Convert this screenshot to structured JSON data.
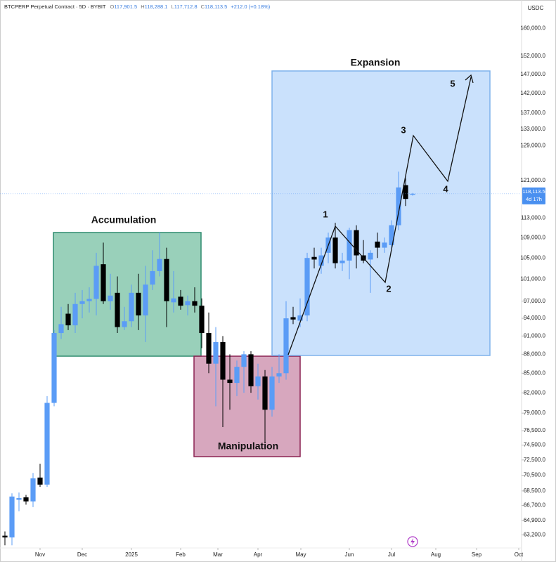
{
  "chart_data": {
    "type": "candlestick",
    "header": {
      "symbol": "BTCPERP Perpetual Contract · 5D · BYBIT",
      "ohlc": [
        {
          "key": "O",
          "value": "117,901.5"
        },
        {
          "key": "H",
          "value": "118,288.1"
        },
        {
          "key": "L",
          "value": "117,712.8"
        },
        {
          "key": "C",
          "value": "118,113.5"
        }
      ],
      "change": "+212.0 (+0.18%)"
    },
    "currency": "USDC",
    "last_price": {
      "value": 118113.5,
      "label": "118,113.5"
    },
    "countdown": "4d 17h",
    "up_color": "#5b9cf6",
    "down_color": "#000000",
    "log_scale": true,
    "grid": false,
    "open": [
      63100,
      62900,
      67400,
      67700,
      67200,
      70200,
      69300,
      80500,
      91500,
      94800,
      92800,
      96500,
      97000,
      97400,
      103800,
      97000,
      98500,
      92500,
      93500,
      98500,
      94500,
      100000,
      102500,
      104800,
      96800,
      97800,
      96300,
      97000,
      96200,
      91500,
      86500,
      90000,
      84000,
      83500,
      86000,
      88000,
      83000,
      84500,
      79500,
      84500,
      85000,
      94200,
      93600,
      94500,
      105200,
      103500,
      106000,
      109000,
      104000,
      104500,
      110500,
      105500,
      104700,
      108200,
      107000,
      107500,
      111500,
      120000,
      117901.5
    ],
    "high": [
      63600,
      68200,
      68300,
      68000,
      70800,
      72000,
      81500,
      92000,
      96000,
      96500,
      98500,
      99000,
      99500,
      106000,
      108000,
      102000,
      101500,
      96000,
      100000,
      102000,
      103500,
      106500,
      110000,
      107000,
      102500,
      99000,
      98000,
      99500,
      97500,
      95000,
      92500,
      91000,
      88000,
      87000,
      88500,
      88500,
      86500,
      85500,
      86000,
      88000,
      97000,
      96000,
      97500,
      106000,
      107000,
      107000,
      110000,
      112000,
      106000,
      111000,
      111500,
      108500,
      106500,
      110000,
      109000,
      112500,
      123000,
      121500,
      118288.1
    ],
    "low": [
      62000,
      62000,
      66000,
      66800,
      66500,
      69000,
      69000,
      80000,
      90500,
      92000,
      91500,
      94000,
      95000,
      94500,
      96500,
      95500,
      91500,
      92000,
      92500,
      92000,
      90000,
      99000,
      101500,
      92500,
      95000,
      95500,
      94500,
      95000,
      89000,
      85000,
      80000,
      77000,
      79500,
      81500,
      82000,
      82000,
      81000,
      74800,
      78500,
      83500,
      84000,
      93000,
      92500,
      93500,
      103000,
      102000,
      104000,
      103000,
      102500,
      101000,
      103000,
      104000,
      98500,
      105000,
      106000,
      106500,
      110500,
      115500,
      117712.8
    ],
    "close": [
      62900,
      67800,
      67600,
      67200,
      70100,
      69300,
      80500,
      91500,
      93000,
      92800,
      96500,
      97000,
      97400,
      103500,
      97000,
      98000,
      92500,
      93500,
      98500,
      94500,
      100000,
      102500,
      104800,
      97000,
      97500,
      96200,
      97000,
      96200,
      91500,
      86500,
      90000,
      84000,
      83500,
      86000,
      88000,
      83000,
      84500,
      79500,
      84500,
      85000,
      94000,
      93800,
      94500,
      105000,
      104700,
      105500,
      109000,
      104000,
      104500,
      110500,
      105500,
      104500,
      106000,
      107000,
      108000,
      111500,
      119500,
      117000,
      118113.5
    ],
    "xlim": [
      -0.7,
      73.4
    ],
    "xticks": [
      {
        "value": 5,
        "label": "Nov"
      },
      {
        "value": 11,
        "label": "Dec"
      },
      {
        "value": 18,
        "label": "2025"
      },
      {
        "value": 25,
        "label": "Feb"
      },
      {
        "value": 30.3,
        "label": "Mar"
      },
      {
        "value": 36,
        "label": "Apr"
      },
      {
        "value": 42.1,
        "label": "May"
      },
      {
        "value": 49,
        "label": "Jun"
      },
      {
        "value": 55,
        "label": "Jul"
      },
      {
        "value": 61.3,
        "label": "Aug"
      },
      {
        "value": 67.1,
        "label": "Sep"
      },
      {
        "value": 73.1,
        "label": "Oct"
      }
    ],
    "ylim": [
      61700,
      168500
    ],
    "yticks": [
      {
        "value": 160000,
        "label": "160,000.0"
      },
      {
        "value": 152000,
        "label": "152,000.0"
      },
      {
        "value": 147000,
        "label": "147,000.0"
      },
      {
        "value": 142000,
        "label": "142,000.0"
      },
      {
        "value": 137000,
        "label": "137,000.0"
      },
      {
        "value": 133000,
        "label": "133,000.0"
      },
      {
        "value": 129000,
        "label": "129,000.0"
      },
      {
        "value": 121000,
        "label": "121,000.0"
      },
      {
        "value": 113000,
        "label": "113,000.0"
      },
      {
        "value": 109000,
        "label": "109,000.0"
      },
      {
        "value": 105000,
        "label": "105,000.0"
      },
      {
        "value": 101000,
        "label": "101,000.0"
      },
      {
        "value": 97000,
        "label": "97,000.0"
      },
      {
        "value": 94000,
        "label": "94,000.0"
      },
      {
        "value": 91000,
        "label": "91,000.0"
      },
      {
        "value": 88000,
        "label": "88,000.0"
      },
      {
        "value": 85000,
        "label": "85,000.0"
      },
      {
        "value": 82000,
        "label": "82,000.0"
      },
      {
        "value": 79000,
        "label": "79,000.0"
      },
      {
        "value": 76500,
        "label": "76,500.0"
      },
      {
        "value": 74500,
        "label": "74,500.0"
      },
      {
        "value": 72500,
        "label": "72,500.0"
      },
      {
        "value": 70500,
        "label": "70,500.0"
      },
      {
        "value": 68500,
        "label": "68,500.0"
      },
      {
        "value": 66700,
        "label": "66,700.0"
      },
      {
        "value": 64900,
        "label": "64,900.0"
      },
      {
        "value": 63200,
        "label": "63,200.0"
      }
    ],
    "annotations": {
      "zones": [
        "Accumulation",
        "Manipulation",
        "Expansion"
      ],
      "waves": [
        "1",
        "2",
        "3",
        "4",
        "5"
      ]
    }
  }
}
